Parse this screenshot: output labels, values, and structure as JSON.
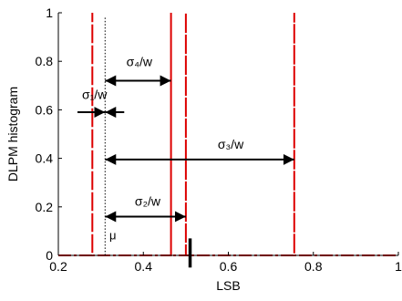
{
  "chart_data": {
    "type": "line",
    "title": "",
    "xlabel": "LSB",
    "ylabel": "DLPM histogram",
    "xlim": [
      0.2,
      1.0
    ],
    "ylim": [
      0,
      1.0
    ],
    "x_ticks": [
      0.2,
      0.4,
      0.6,
      0.8,
      1.0
    ],
    "x_tick_labels": [
      "0.2",
      "0.4",
      "0.6",
      "0.8",
      "1"
    ],
    "y_ticks": [
      0,
      0.2,
      0.4,
      0.6,
      0.8,
      1.0
    ],
    "y_tick_labels": [
      "0",
      "0.2",
      "0.4",
      "0.6",
      "0.8",
      "1"
    ],
    "grid": false,
    "colors": {
      "series": "#dd0000",
      "axes": "#000000"
    },
    "series": [
      {
        "style": "dash-dot",
        "x": [
          0.2,
          0.28,
          0.28,
          0.28,
          0.465,
          0.465,
          0.465,
          0.5,
          0.5,
          0.5,
          0.755,
          0.755,
          0.755,
          1.0
        ],
        "y": [
          0,
          0,
          1.0,
          0,
          0,
          1.0,
          0,
          0,
          1.0,
          0,
          0,
          1.0,
          0,
          0
        ]
      }
    ],
    "mean_line": {
      "x": 0.31,
      "y_top": 0.98,
      "style": "dotted"
    },
    "marker": {
      "x": 0.51,
      "y_top": 0.07,
      "y_bottom": -0.05
    },
    "annotations": [
      {
        "label": "σ₄/w",
        "x_from": 0.31,
        "x_to": 0.465,
        "y": 0.72,
        "type": "double-arrow",
        "label_x": 0.36,
        "label_y": 0.78
      },
      {
        "label": "σ₁/w",
        "x_from": 0.31,
        "x_to": 0.31,
        "y": 0.59,
        "type": "converging",
        "left_x": 0.245,
        "right_x": 0.355,
        "label_x": 0.285,
        "label_y": 0.645
      },
      {
        "label": "σ₃/w",
        "x_from": 0.31,
        "x_to": 0.755,
        "y": 0.395,
        "type": "double-arrow",
        "label_x": 0.575,
        "label_y": 0.44
      },
      {
        "label": "σ₂/w",
        "x_from": 0.31,
        "x_to": 0.5,
        "y": 0.16,
        "type": "double-arrow",
        "label_x": 0.38,
        "label_y": 0.205
      },
      {
        "label": "μ",
        "x": 0.32,
        "y": 0.065,
        "type": "text"
      }
    ]
  }
}
